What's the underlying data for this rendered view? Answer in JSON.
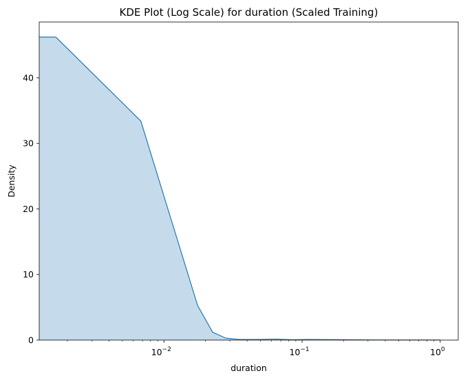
{
  "chart_data": {
    "type": "area",
    "title": "KDE Plot (Log Scale) for duration (Scaled Training)",
    "xlabel": "duration",
    "ylabel": "Density",
    "xscale": "log",
    "xlim": [
      0.00125,
      1.35
    ],
    "ylim": [
      0,
      48.5
    ],
    "grid": false,
    "legend": "none",
    "colors": {
      "line": "#1f77b4",
      "fill": "#c5dbec"
    },
    "x_ticks": [
      {
        "base": "10",
        "exp": "−2",
        "value": 0.01
      },
      {
        "base": "10",
        "exp": "−1",
        "value": 0.1
      },
      {
        "base": "10",
        "exp": "0",
        "value": 1
      }
    ],
    "y_ticks": [
      "0",
      "10",
      "20",
      "30",
      "40"
    ],
    "y_tick_values": [
      0,
      10,
      20,
      30,
      40
    ],
    "x": [
      0.00125,
      0.00165,
      0.0068,
      0.0175,
      0.0225,
      0.028,
      0.035,
      0.05,
      0.065,
      0.085,
      0.11,
      0.2,
      0.4,
      0.7,
      1.0
    ],
    "y": [
      46.2,
      46.2,
      33.4,
      5.3,
      1.2,
      0.3,
      0.1,
      0.1,
      0.15,
      0.05,
      0.1,
      0.05,
      0.02,
      0.02,
      0.02
    ]
  }
}
